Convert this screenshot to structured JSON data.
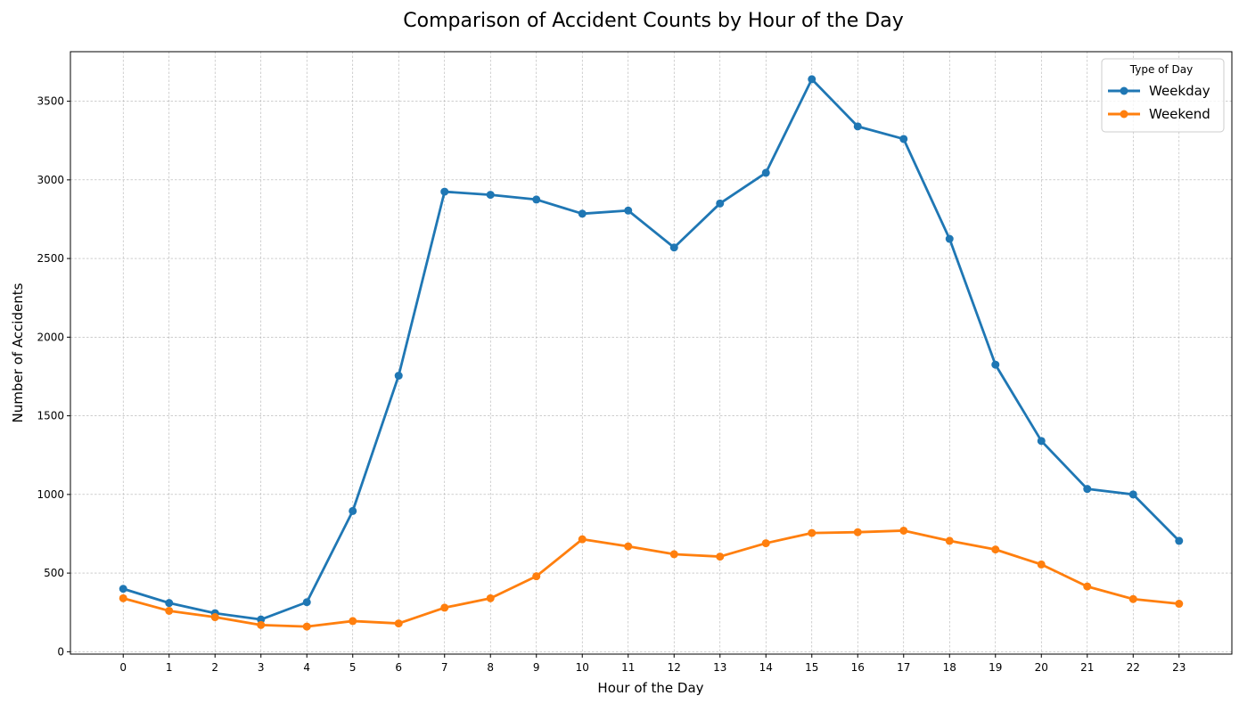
{
  "chart_data": {
    "type": "line",
    "title": "Comparison of Accident Counts by Hour of the Day",
    "xlabel": "Hour of the Day",
    "ylabel": "Number of Accidents",
    "x": [
      0,
      1,
      2,
      3,
      4,
      5,
      6,
      7,
      8,
      9,
      10,
      11,
      12,
      13,
      14,
      15,
      16,
      17,
      18,
      19,
      20,
      21,
      22,
      23
    ],
    "x_tick_labels": [
      "0",
      "1",
      "2",
      "3",
      "4",
      "5",
      "6",
      "7",
      "8",
      "9",
      "10",
      "11",
      "12",
      "13",
      "14",
      "15",
      "16",
      "17",
      "18",
      "19",
      "20",
      "21",
      "22",
      "23"
    ],
    "xlim": [
      -1.15,
      24.15
    ],
    "ylim": [
      -15,
      3815
    ],
    "y_ticks": [
      0,
      500,
      1000,
      1500,
      2000,
      2500,
      3000,
      3500
    ],
    "y_tick_labels": [
      "0",
      "500",
      "1000",
      "1500",
      "2000",
      "2500",
      "3000",
      "3500"
    ],
    "grid": true,
    "legend": {
      "title": "Type of Day",
      "position": "top-right"
    },
    "series": [
      {
        "name": "Weekday",
        "color": "#1f77b4",
        "values": [
          400,
          310,
          245,
          205,
          315,
          895,
          1755,
          2925,
          2905,
          2875,
          2785,
          2805,
          2570,
          2850,
          3045,
          3640,
          3340,
          3260,
          2625,
          1825,
          1340,
          1035,
          1000,
          705
        ]
      },
      {
        "name": "Weekend",
        "color": "#ff7f0e",
        "values": [
          340,
          260,
          220,
          170,
          160,
          195,
          180,
          280,
          340,
          480,
          715,
          670,
          620,
          605,
          690,
          755,
          760,
          770,
          705,
          650,
          555,
          415,
          335,
          305
        ]
      }
    ]
  }
}
